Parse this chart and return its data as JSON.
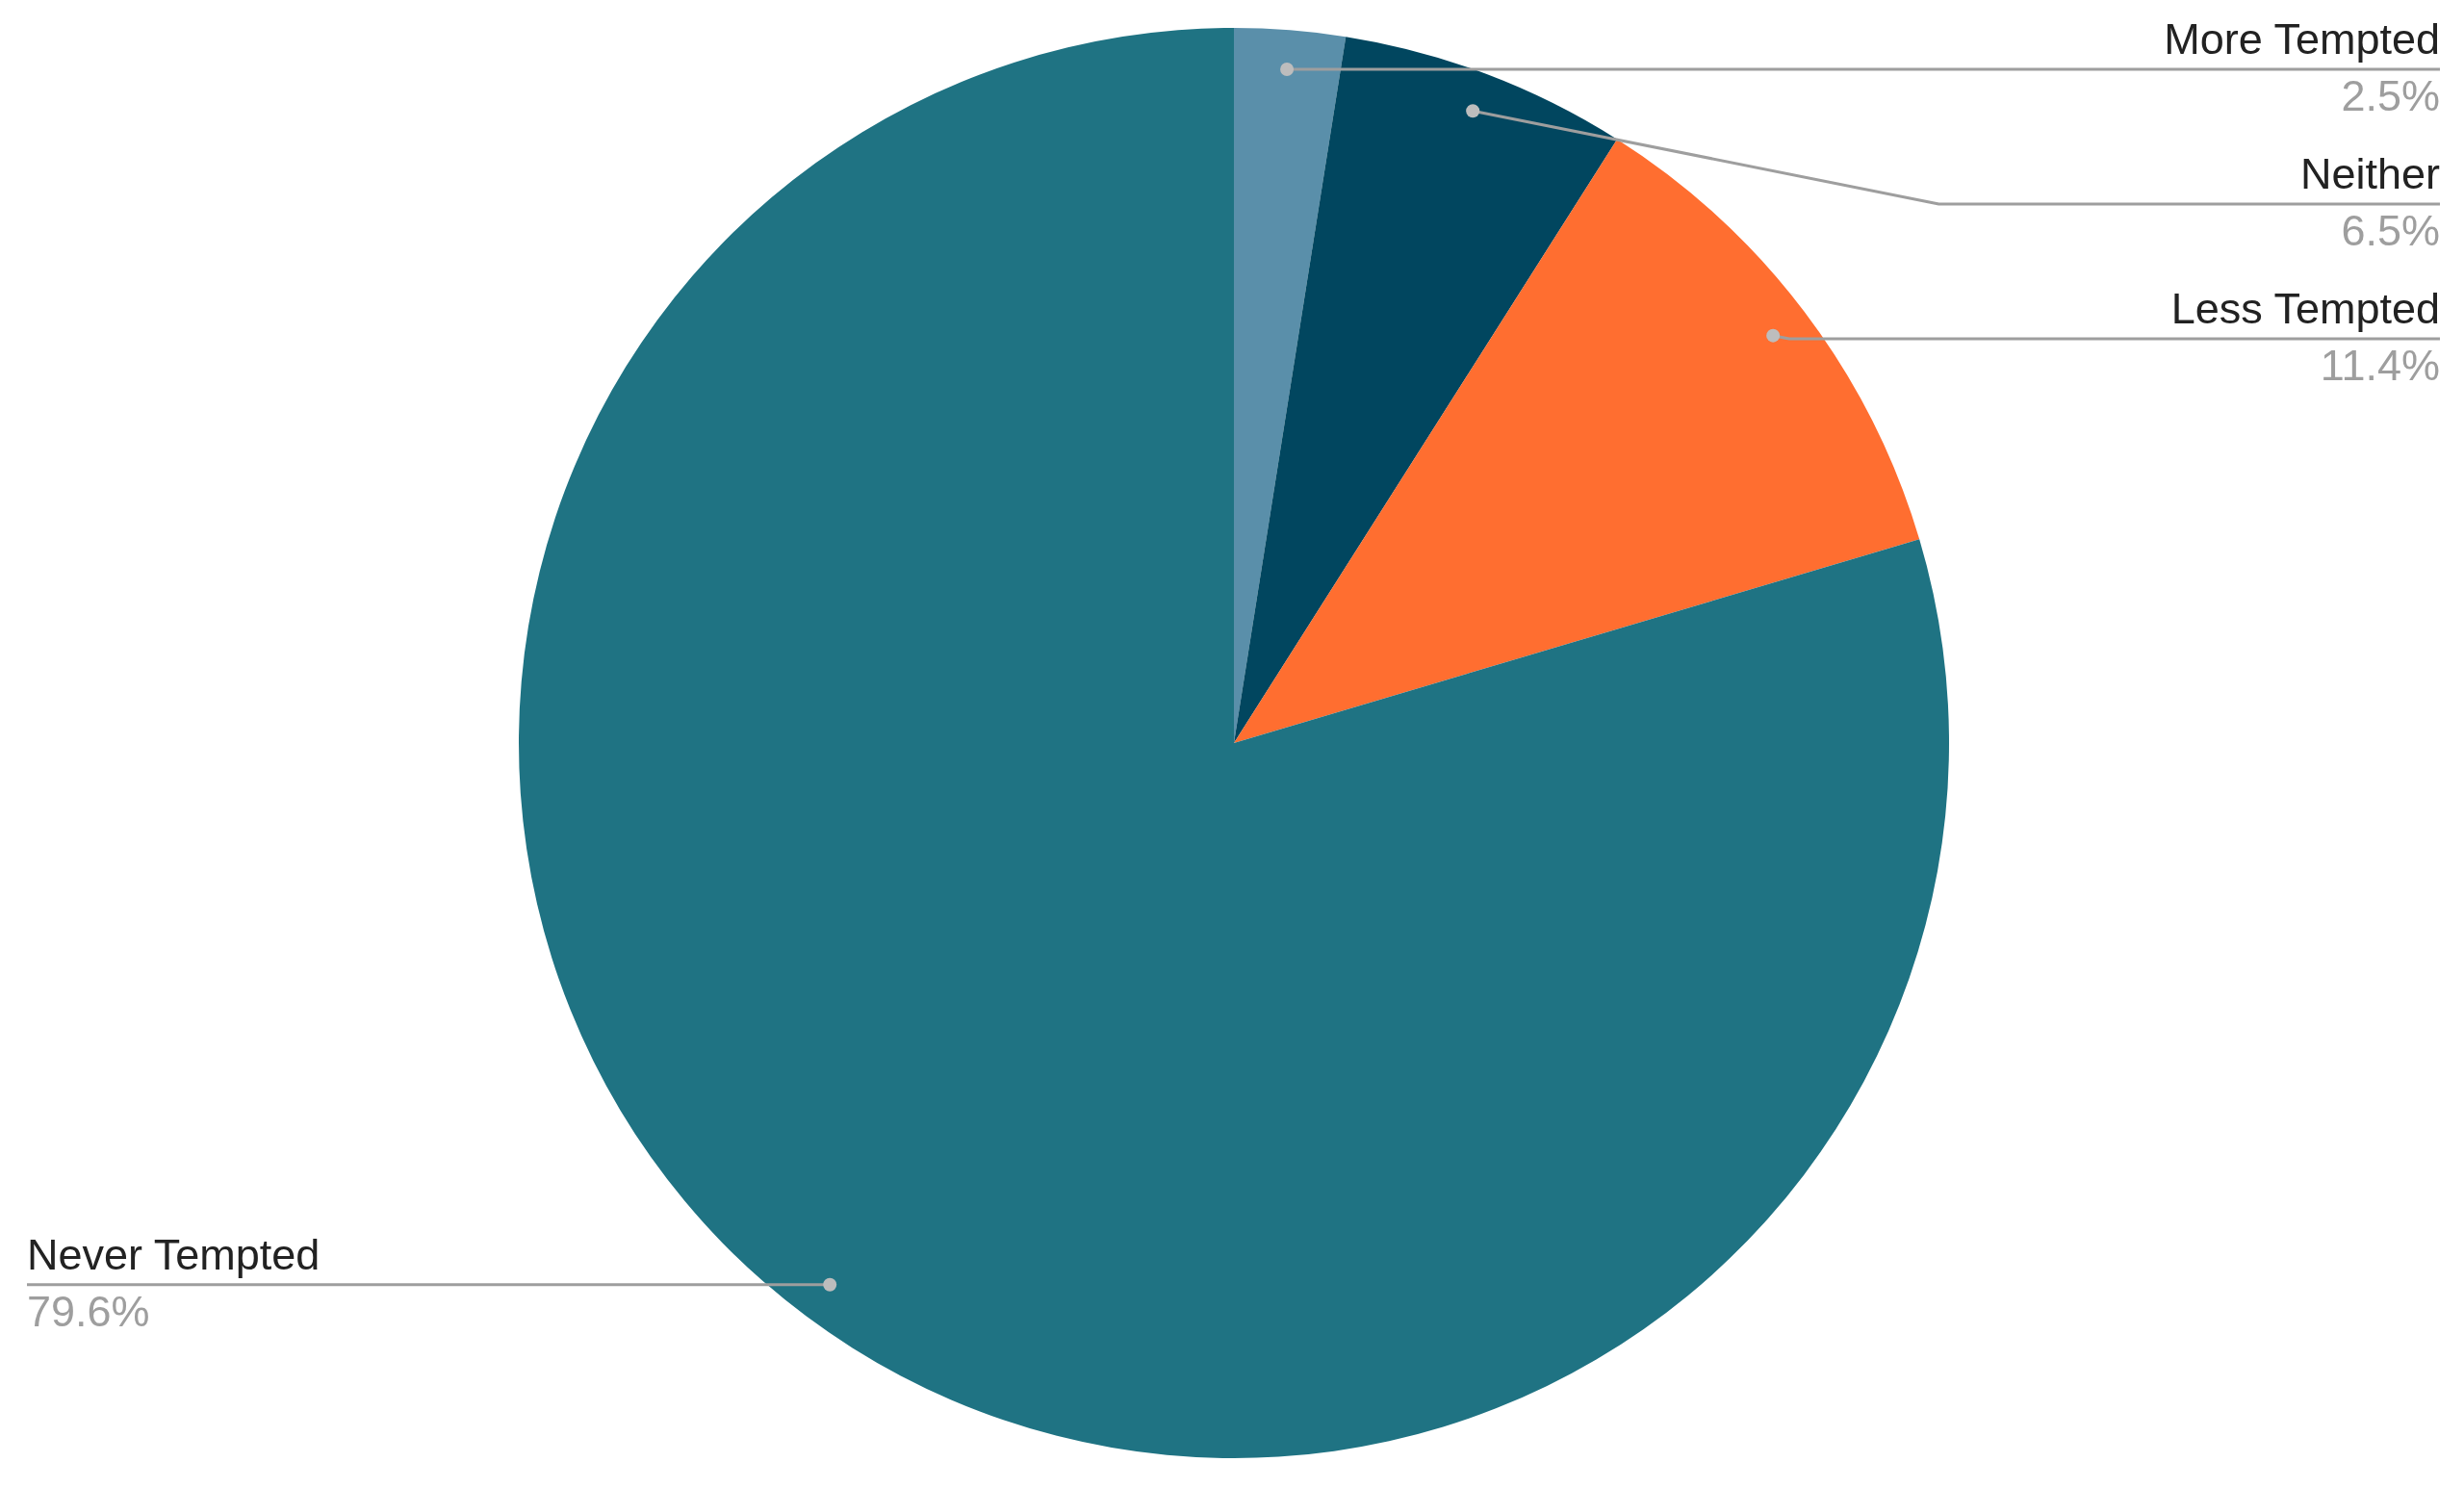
{
  "chart_data": {
    "type": "pie",
    "categories": [
      "More Tempted",
      "Neither",
      "Less Tempted",
      "Never Tempted"
    ],
    "values": [
      2.5,
      6.5,
      11.4,
      79.6
    ],
    "colors": [
      "#5a8faa",
      "#01465f",
      "#ff6e30",
      "#1f7383"
    ],
    "value_labels": [
      "2.5%",
      "6.5%",
      "11.4%",
      "79.6%"
    ],
    "legend": false
  }
}
